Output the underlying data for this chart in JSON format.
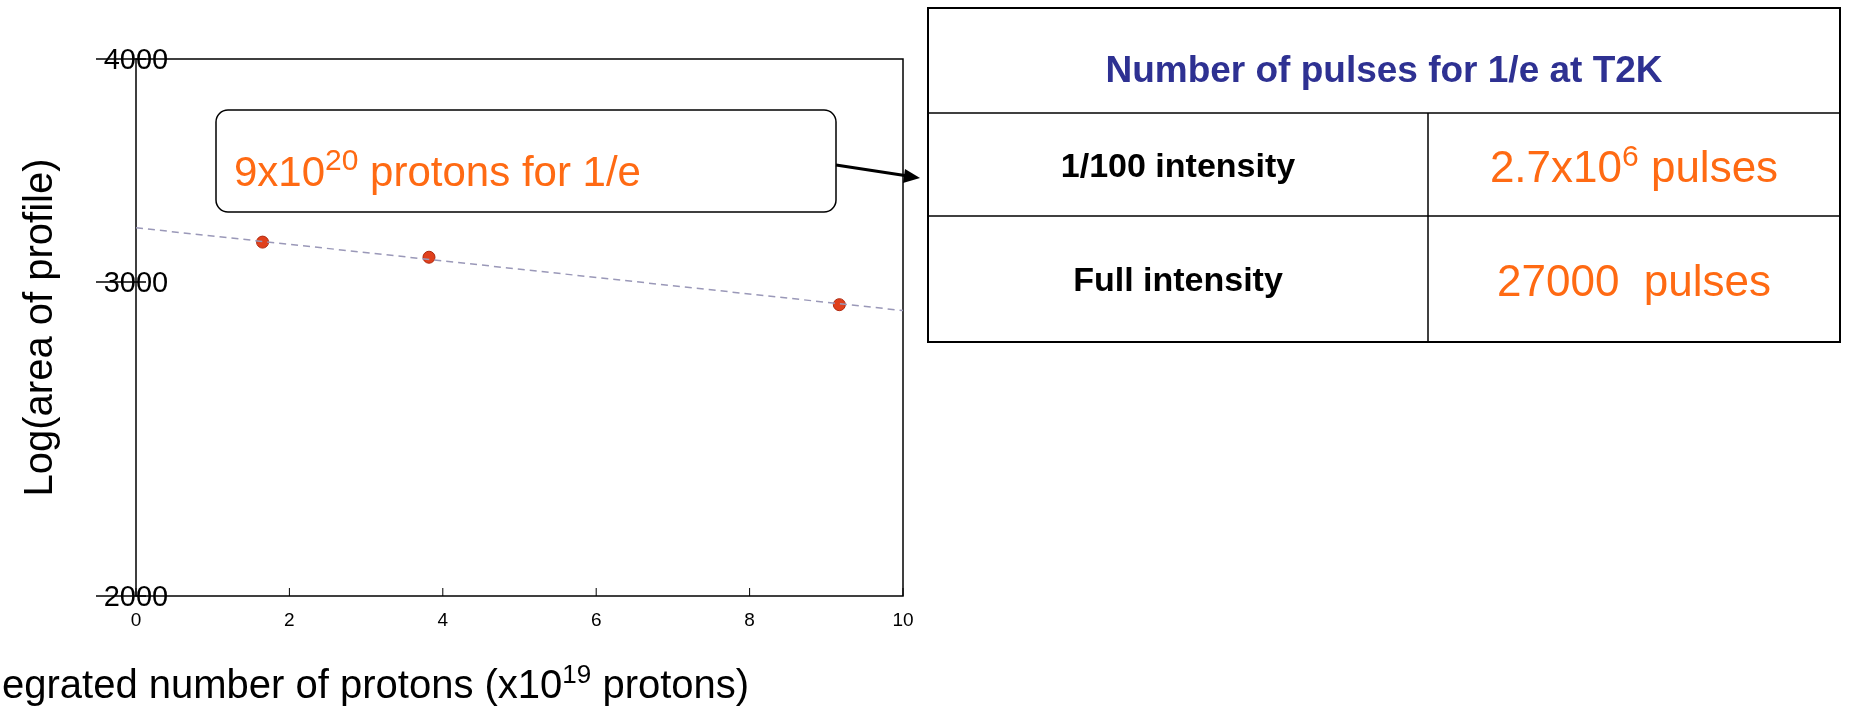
{
  "chart_data": [
    {
      "type": "scatter",
      "xlabel": "egrated number of protons (x10$^{19}$ protons)",
      "ylabel": "Log(area of profile)",
      "log": "y",
      "xlim": [
        0,
        10
      ],
      "ylim": [
        2000,
        4000
      ],
      "xticks": [
        0,
        2,
        4,
        6,
        8,
        10
      ],
      "yticks": [
        2000,
        3000,
        4000
      ],
      "grid": false,
      "marker": "circle",
      "annotations": [
        "9x10$^{20}$ protons for 1/e"
      ],
      "series": [
        {
          "color": "#e0401c",
          "x": [
            1.65,
            3.82,
            9.17
          ],
          "values": [
            3158,
            3097,
            2913
          ]
        },
        {
          "type": "line",
          "color": "#9a98b8",
          "line_style": "dashed",
          "marker": "none",
          "x": [
            0,
            10
          ],
          "values": [
            3217,
            2891
          ]
        }
      ]
    },
    {
      "type": "other",
      "title": "Number of pulses for 1/e at T2K",
      "annotations": [
        "1/100 intensity",
        "2.7x10$^{6}$ pulses",
        "Full intensity",
        "27000  pulses"
      ]
    }
  ]
}
